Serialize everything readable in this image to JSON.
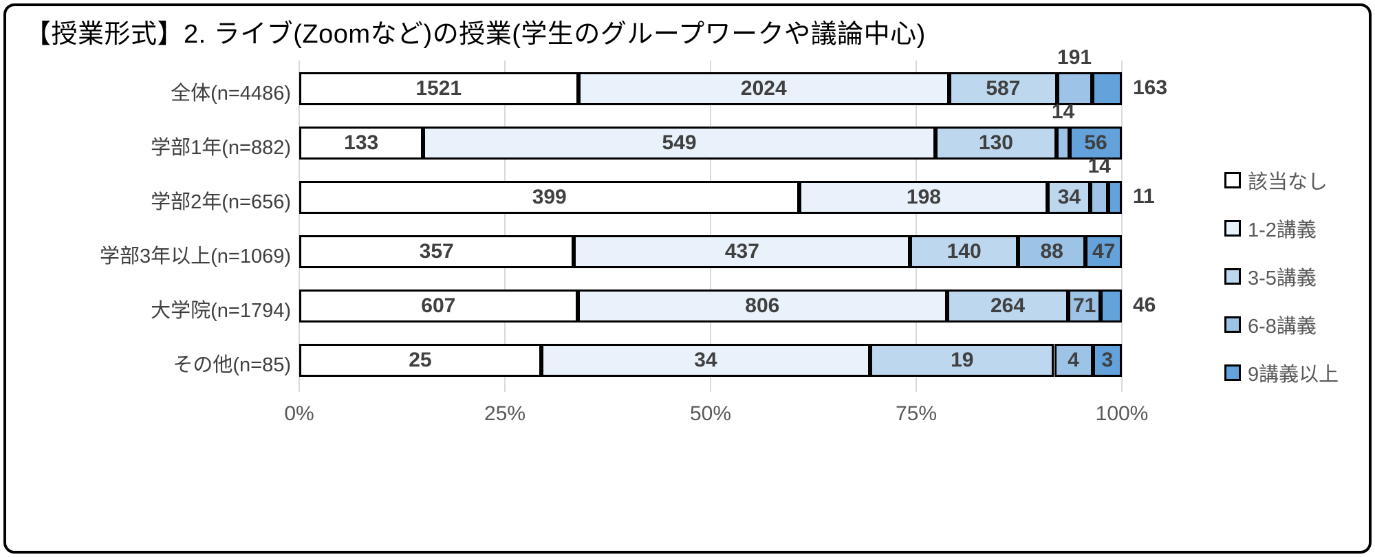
{
  "title": "【授業形式】2. ライブ(Zoomなど)の授業(学生のグループワークや議論中心)",
  "colors": {
    "frame_border": "#000000",
    "grid": "#d9d9d9",
    "segment_border": "#000000",
    "data_label": "#404040",
    "category_label": "#3f3f3f",
    "axis_label": "#595959",
    "legend_label": "#595959"
  },
  "chart_data": {
    "type": "bar",
    "subtype": "horizontal-100pct-stacked",
    "title": "【授業形式】2. ライブ(Zoomなど)の授業(学生のグループワークや議論中心)",
    "categories": [
      "全体(n=4486)",
      "学部1年(n=882)",
      "学部2年(n=656)",
      "学部3年以上(n=1069)",
      "大学院(n=1794)",
      "その他(n=85)"
    ],
    "category_n": [
      4486,
      882,
      656,
      1069,
      1794,
      85
    ],
    "series": [
      {
        "name": "該当なし",
        "color": "#ffffff",
        "values": [
          1521,
          133,
          399,
          357,
          607,
          25
        ]
      },
      {
        "name": "1-2講義",
        "color": "#e9f2fa",
        "values": [
          2024,
          549,
          198,
          437,
          806,
          34
        ]
      },
      {
        "name": "3-5講義",
        "color": "#bdd7ee",
        "values": [
          587,
          130,
          34,
          140,
          264,
          19
        ]
      },
      {
        "name": "6-8講義",
        "color": "#9dc3e6",
        "values": [
          191,
          14,
          14,
          88,
          71,
          4
        ]
      },
      {
        "name": "9講義以上",
        "color": "#63a2db",
        "values": [
          163,
          56,
          11,
          47,
          46,
          3
        ]
      }
    ],
    "label_positions": [
      [
        "inside",
        "inside",
        "inside",
        "above",
        "right"
      ],
      [
        "inside",
        "inside",
        "inside",
        "above",
        "inside"
      ],
      [
        "inside",
        "inside",
        "inside",
        "above",
        "right"
      ],
      [
        "inside",
        "inside",
        "inside",
        "inside",
        "inside"
      ],
      [
        "inside",
        "inside",
        "inside",
        "inside",
        "right"
      ],
      [
        "inside",
        "inside",
        "inside",
        "inside",
        "inside"
      ]
    ],
    "x_axis": {
      "ticks": [
        "0%",
        "25%",
        "50%",
        "75%",
        "100%"
      ],
      "range": [
        0,
        100
      ],
      "grid": true
    },
    "legend": {
      "position": "right"
    }
  }
}
